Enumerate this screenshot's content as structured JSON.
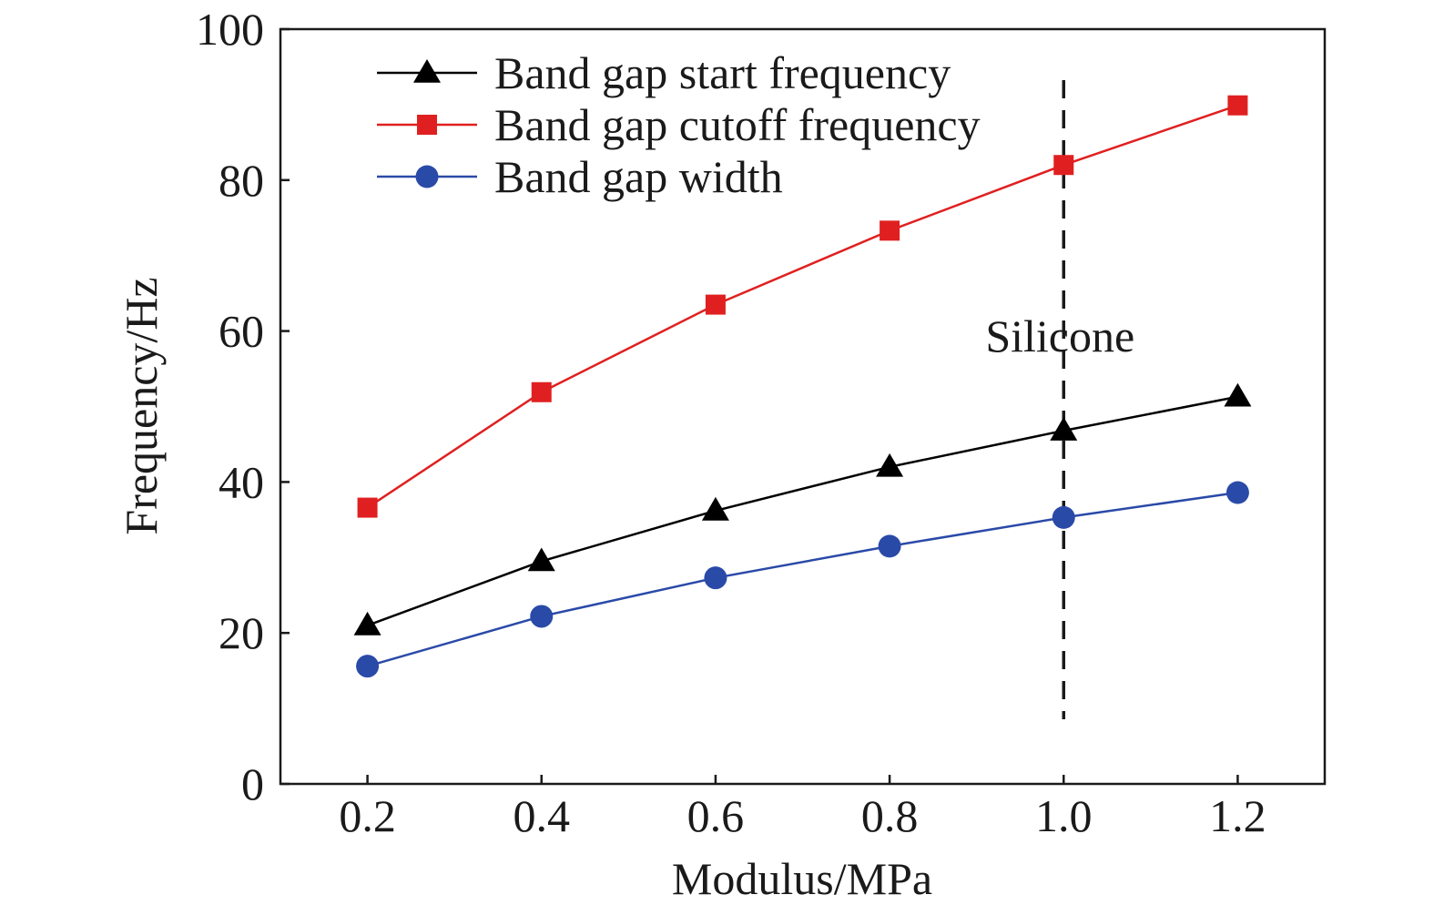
{
  "chart_data": {
    "type": "line",
    "title": "",
    "xlabel": "Modulus/MPa",
    "ylabel": "Frequency/Hz",
    "x": [
      0.2,
      0.4,
      0.6,
      0.8,
      1.0,
      1.2
    ],
    "x_tick_labels": [
      "0.2",
      "0.4",
      "0.6",
      "0.8",
      "1.0",
      "1.2"
    ],
    "y_tick_labels": [
      "0",
      "20",
      "40",
      "60",
      "80",
      "100"
    ],
    "y_ticks": [
      0,
      20,
      40,
      60,
      80,
      100
    ],
    "xlim": [
      0.1,
      1.3
    ],
    "ylim": [
      0,
      100
    ],
    "grid": false,
    "legend_position": "top-center",
    "series": [
      {
        "name": "Band gap start frequency",
        "marker": "triangle",
        "color": "#000000",
        "values": [
          21.0,
          29.5,
          36.2,
          42.0,
          46.8,
          51.3
        ]
      },
      {
        "name": "Band gap cutoff frequency",
        "marker": "square",
        "color": "#e02020",
        "values": [
          36.6,
          51.9,
          63.5,
          73.3,
          82.0,
          89.9
        ]
      },
      {
        "name": "Band gap width",
        "marker": "circle",
        "color": "#2a4aa8",
        "values": [
          15.6,
          22.2,
          27.3,
          31.5,
          35.3,
          38.6
        ]
      }
    ],
    "annotations": [
      {
        "text": "Silicone",
        "x": 1.0,
        "style": "dashed-vertical-line"
      }
    ]
  }
}
